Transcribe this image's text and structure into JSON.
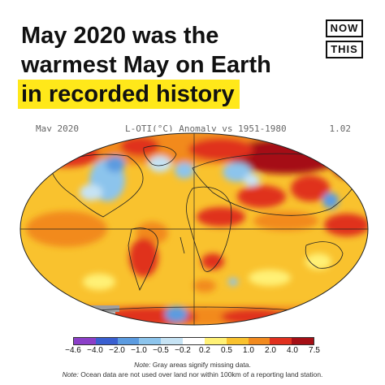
{
  "headline": {
    "line1": "May 2020 was the",
    "line2": "warmest May on Earth",
    "line3": "in recorded history"
  },
  "logo": {
    "top": "NOW",
    "bottom": "THIS"
  },
  "map_header": {
    "left": "May 2020",
    "center": "L-OTI(°C) Anomaly vs 1951-1980",
    "right": "1.02"
  },
  "colorbar": {
    "labels": [
      "−4.6",
      "−4.0",
      "−2.0",
      "−1.0",
      "−0.5",
      "−0.2",
      "0.2",
      "0.5",
      "1.0",
      "2.0",
      "4.0",
      "7.5"
    ],
    "colors": [
      "#8b3fc8",
      "#3a5fd0",
      "#5b9be0",
      "#8cc4ec",
      "#c6e3f4",
      "#ffffff",
      "#fff176",
      "#f9c22e",
      "#f28a1e",
      "#e0301e",
      "#a50f15"
    ]
  },
  "notes": {
    "line1_prefix": "Note:",
    "line1_text": " Gray areas signify missing data.",
    "line2_prefix": "Note:",
    "line2_text": " Ocean data are not used over land nor within 100km of a reporting land station."
  }
}
